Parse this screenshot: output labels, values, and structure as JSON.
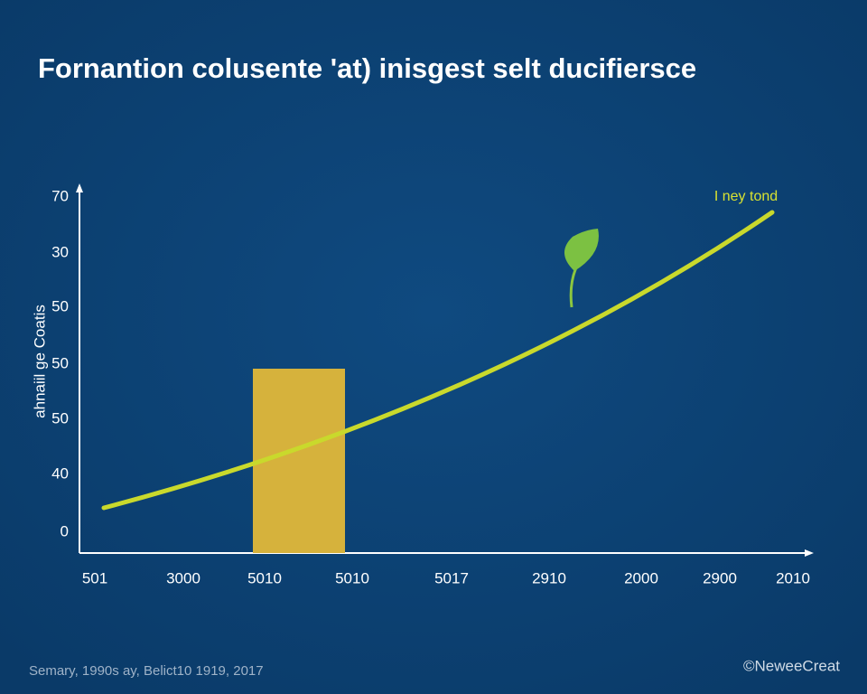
{
  "title": "Fornantion colusente 'at) inisgest selt ducifiersce",
  "y_axis_label": "ahnaiil ge Coatis",
  "y_labels": [
    "70",
    "30",
    "50",
    "50",
    "50",
    "40",
    "0"
  ],
  "x_labels": [
    "501",
    "3000",
    "5010",
    "5010",
    "5017",
    "2910",
    "2000",
    "2900",
    "2010"
  ],
  "series_label": "I ney tond",
  "footer": "Semary, 1990s ay, Belict10 1919, 2017",
  "credit": "©NeweeCreat"
}
